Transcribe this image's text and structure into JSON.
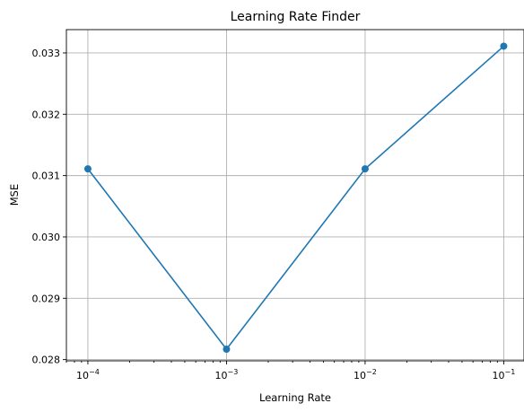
{
  "chart_data": {
    "type": "line",
    "title": "Learning Rate Finder",
    "xlabel": "Learning Rate",
    "ylabel": "MSE",
    "xscale": "log",
    "xlim": [
      7e-05,
      0.14
    ],
    "ylim": [
      0.02798,
      0.03338
    ],
    "x_ticks": [
      {
        "value": 0.0001,
        "base": "10",
        "exp": "−4"
      },
      {
        "value": 0.001,
        "base": "10",
        "exp": "−3"
      },
      {
        "value": 0.01,
        "base": "10",
        "exp": "−2"
      },
      {
        "value": 0.1,
        "base": "10",
        "exp": "−1"
      }
    ],
    "y_ticks": [
      {
        "value": 0.028,
        "label": "0.028"
      },
      {
        "value": 0.029,
        "label": "0.029"
      },
      {
        "value": 0.03,
        "label": "0.030"
      },
      {
        "value": 0.031,
        "label": "0.031"
      },
      {
        "value": 0.032,
        "label": "0.032"
      },
      {
        "value": 0.033,
        "label": "0.033"
      }
    ],
    "grid": true,
    "series": [
      {
        "color": "#1f77b4",
        "marker": "circle",
        "x": [
          0.0001,
          0.001,
          0.01,
          0.1
        ],
        "y": [
          0.03111,
          0.02817,
          0.03111,
          0.03311
        ]
      }
    ]
  }
}
